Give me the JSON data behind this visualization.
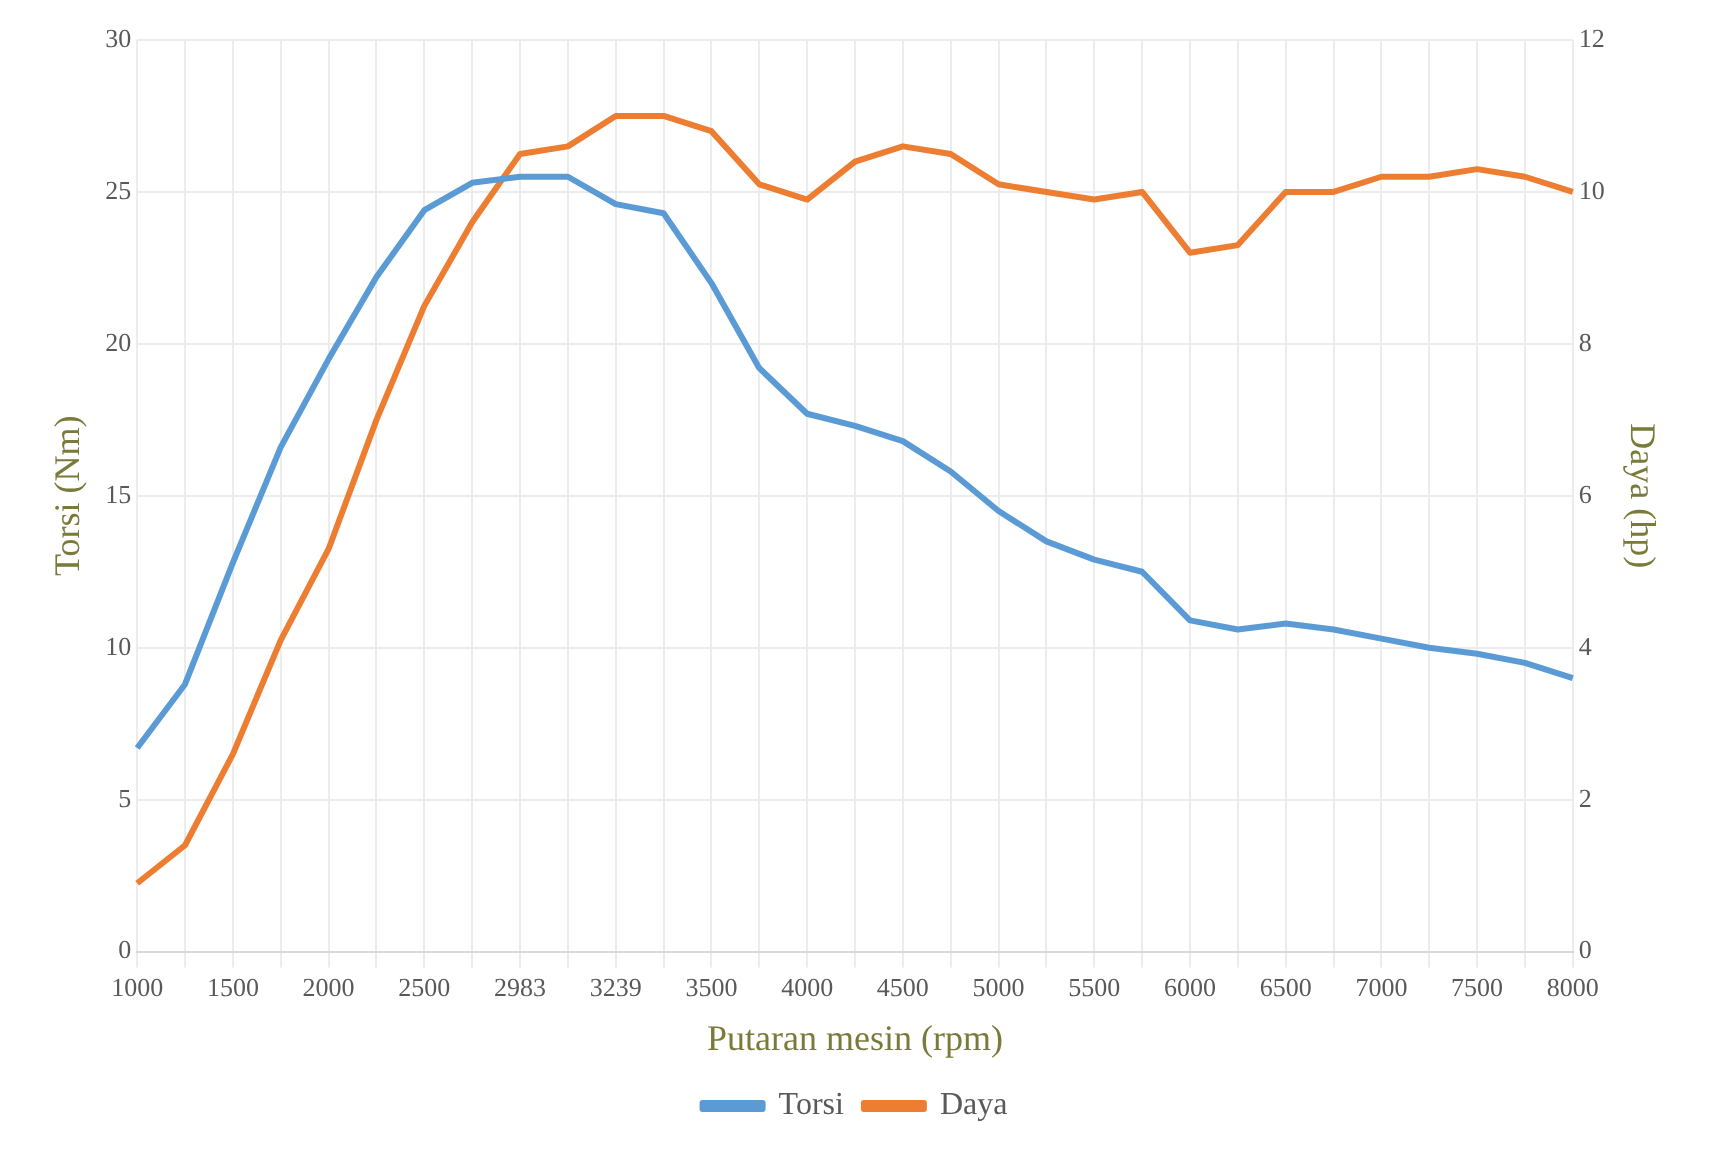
{
  "chart_data": {
    "type": "line",
    "xlabel": "Putaran mesin (rpm)",
    "ylabel": "Torsi (Nm)",
    "y2label": "Daya (hp)",
    "categories": [
      "1000",
      null,
      "1500",
      null,
      "2000",
      null,
      "2500",
      null,
      "2983",
      null,
      "3239",
      null,
      "3500",
      null,
      "4000",
      null,
      "4500",
      null,
      "5000",
      null,
      "5500",
      null,
      "6000",
      null,
      "6500",
      null,
      "7000",
      null,
      "7500",
      null,
      "8000"
    ],
    "series": [
      {
        "name": "Torsi",
        "color": "#5b9bd5",
        "values": [
          6.7,
          8.8,
          12.8,
          16.6,
          19.5,
          22.2,
          24.4,
          25.3,
          25.5,
          25.5,
          24.6,
          24.3,
          22.0,
          19.2,
          17.7,
          17.3,
          16.8,
          15.8,
          14.5,
          13.5,
          12.9,
          12.5,
          10.9,
          10.6,
          10.8,
          10.6,
          10.3,
          10.0,
          9.8,
          9.5,
          9.0
        ]
      },
      {
        "name": "Daya",
        "color": "#ed7d31",
        "axis": "y2",
        "values": [
          0.9,
          1.4,
          2.6,
          4.1,
          5.3,
          7.0,
          8.5,
          9.6,
          10.5,
          10.6,
          11.0,
          11.0,
          10.8,
          10.1,
          9.9,
          10.4,
          10.6,
          10.5,
          10.1,
          10.0,
          9.9,
          10.0,
          9.2,
          9.3,
          10.0,
          10.0,
          10.2,
          10.2,
          10.3,
          10.2,
          10.0
        ]
      }
    ],
    "ylim": [
      0,
      30
    ],
    "yticks": [
      0,
      5,
      10,
      15,
      20,
      25,
      30
    ],
    "y2lim": [
      0,
      12
    ],
    "y2ticks": [
      0,
      2,
      4,
      6,
      8,
      10,
      12
    ],
    "grid": true,
    "legend": "bottom",
    "marker": "none",
    "line_style": "solid"
  }
}
